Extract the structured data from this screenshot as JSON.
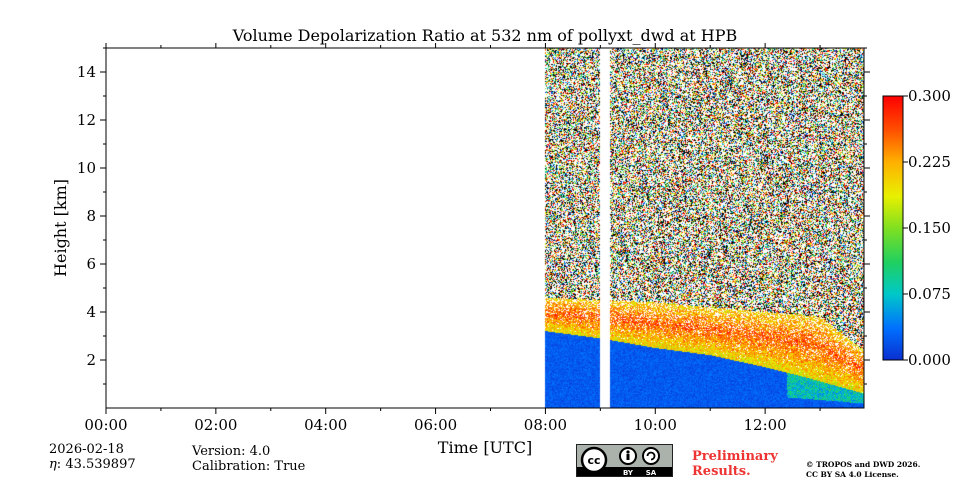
{
  "chart_data": {
    "type": "heatmap",
    "title": "Volume Depolarization Ratio at 532 nm of pollyxt_dwd at HPB",
    "xlabel": "Time [UTC]",
    "ylabel": "Height [km]",
    "xlim_hours": [
      0,
      13.8
    ],
    "ylim_km": [
      0,
      15
    ],
    "x_ticks": [
      {
        "hour": 0,
        "label": "00:00"
      },
      {
        "hour": 2,
        "label": "02:00"
      },
      {
        "hour": 4,
        "label": "04:00"
      },
      {
        "hour": 6,
        "label": "06:00"
      },
      {
        "hour": 8,
        "label": "08:00"
      },
      {
        "hour": 10,
        "label": "10:00"
      },
      {
        "hour": 12,
        "label": "12:00"
      }
    ],
    "y_ticks": [
      {
        "km": 2,
        "label": "2"
      },
      {
        "km": 4,
        "label": "4"
      },
      {
        "km": 6,
        "label": "6"
      },
      {
        "km": 8,
        "label": "8"
      },
      {
        "km": 10,
        "label": "10"
      },
      {
        "km": 12,
        "label": "12"
      },
      {
        "km": 14,
        "label": "14"
      }
    ],
    "colorbar": {
      "range": [
        0.0,
        0.3
      ],
      "ticks": [
        {
          "value": 0.0,
          "label": "0.000"
        },
        {
          "value": 0.075,
          "label": "0.075"
        },
        {
          "value": 0.15,
          "label": "0.150"
        },
        {
          "value": 0.225,
          "label": "0.225"
        },
        {
          "value": 0.3,
          "label": "0.300"
        }
      ],
      "colormap": [
        "#0a2fd0",
        "#0070ff",
        "#00c8c8",
        "#20d060",
        "#80e020",
        "#e8f000",
        "#ffb000",
        "#ff5000",
        "#ff0000"
      ]
    },
    "measurement_start_hour": 8.0,
    "measurement_end_hour": 13.8,
    "data_gap_hours": [
      9.0,
      9.17
    ],
    "boundary_layer_top_km": [
      {
        "hour": 8.0,
        "km": 3.2
      },
      {
        "hour": 9.0,
        "km": 2.9
      },
      {
        "hour": 10.0,
        "km": 2.5
      },
      {
        "hour": 11.0,
        "km": 2.2
      },
      {
        "hour": 12.0,
        "km": 1.7
      },
      {
        "hour": 12.7,
        "km": 1.3
      },
      {
        "hour": 13.8,
        "km": 0.6
      }
    ],
    "aerosol_layer_top_km": [
      {
        "hour": 8.0,
        "km": 4.6
      },
      {
        "hour": 10.0,
        "km": 4.4
      },
      {
        "hour": 11.0,
        "km": 4.2
      },
      {
        "hour": 12.0,
        "km": 4.0
      },
      {
        "hour": 13.0,
        "km": 3.8
      },
      {
        "hour": 13.8,
        "km": 2.4
      }
    ]
  },
  "footer": {
    "date": "2026-02-18",
    "eta": "43.539897",
    "eta_symbol": "η",
    "version": "Version: 4.0",
    "calibration": "Calibration: True",
    "license_badge_main": "cc",
    "license_badge_by": "BY",
    "license_badge_sa": "SA",
    "preliminary_line1": "Preliminary",
    "preliminary_line2": "Results.",
    "copyright_line1": "© TROPOS and DWD 2026.",
    "copyright_line2": "CC BY SA 4.0 License."
  }
}
